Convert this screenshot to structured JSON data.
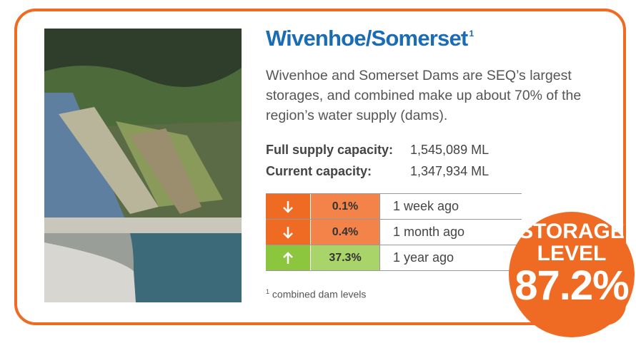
{
  "card": {
    "title": "Wivenhoe/Somerset",
    "title_note": "1",
    "description": "Wivenhoe and Somerset Dams are SEQ’s largest storages, and combined make up about 70% of the region’s water supply (dams).",
    "capacities": [
      {
        "label": "Full supply capacity:",
        "value": "1,545,089 ML"
      },
      {
        "label": "Current capacity:",
        "value": "1,347,934 ML"
      }
    ],
    "changes": [
      {
        "direction": "down",
        "change": "0.1%",
        "period": "1 week ago"
      },
      {
        "direction": "down",
        "change": "0.4%",
        "period": "1 month ago"
      },
      {
        "direction": "up",
        "change": "37.3%",
        "period": "1 year ago"
      }
    ],
    "footnote": {
      "marker": "1",
      "text": "combined dam levels"
    },
    "storage_level": {
      "label_line1": "STORAGE",
      "label_line2": "LEVEL",
      "value": "87.2%"
    }
  }
}
